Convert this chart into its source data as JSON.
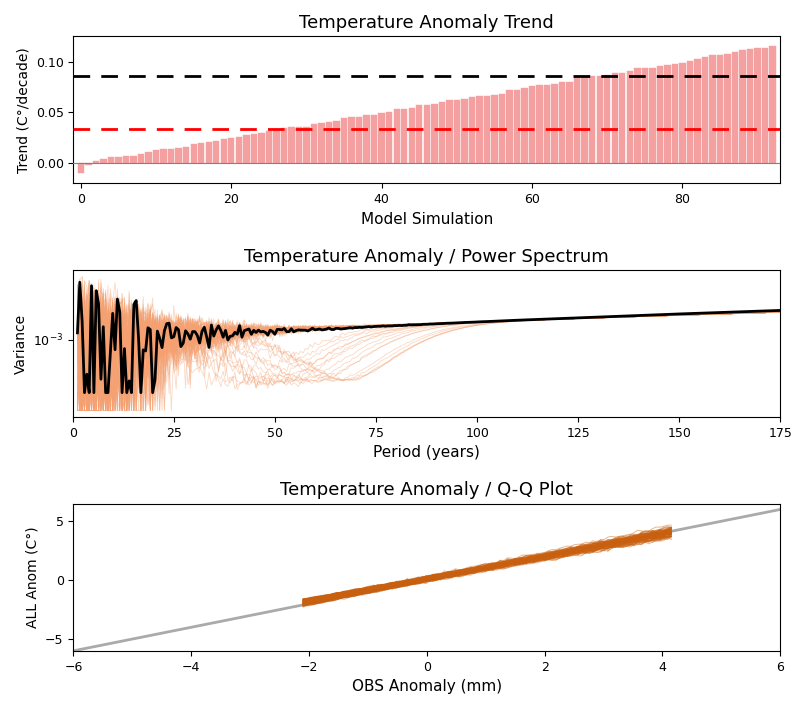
{
  "title1": "Temperature Anomaly Trend",
  "title2": "Temperature Anomaly / Power Spectrum",
  "title3": "Temperature Anomaly / Q-Q Plot",
  "xlabel1": "Model Simulation",
  "ylabel1": "Trend (C°/decade)",
  "xlabel2": "Period (years)",
  "ylabel2": "Variance",
  "xlabel3": "OBS Anomaly (mm)",
  "ylabel3": "ALL Anom (C°)",
  "obs_trend": 0.086,
  "ensemble_mean_trend": 0.034,
  "n_simulations": 93,
  "bar_color": "#f4a0a0",
  "bar_edge_color": "#f4a0a0",
  "obs_line_color": "black",
  "ensemble_mean_color": "red",
  "zero_line_color": "gray",
  "spectrum_obs_color": "black",
  "spectrum_model_color": "#f4a070",
  "qq_model_color": "#c86010",
  "qq_ref_color": "#aaaaaa",
  "ylim1": [
    -0.02,
    0.125
  ],
  "yticks1": [
    0.0,
    0.05,
    0.1
  ],
  "xlim2": [
    0,
    175
  ],
  "ylim3": [
    -6.0,
    6.5
  ],
  "xlim3": [
    -6,
    6
  ],
  "yticks3": [
    -5,
    0,
    5
  ],
  "xticks3": [
    -6,
    -4,
    -2,
    0,
    2,
    4,
    6
  ]
}
